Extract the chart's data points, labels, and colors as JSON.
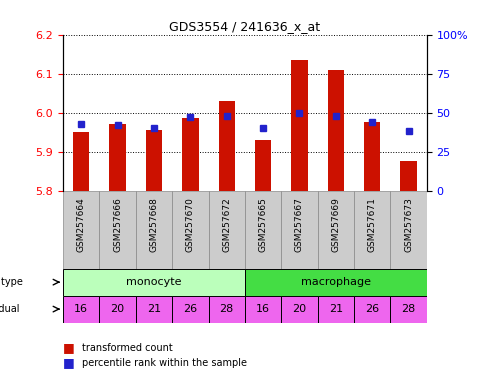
{
  "title": "GDS3554 / 241636_x_at",
  "samples": [
    "GSM257664",
    "GSM257666",
    "GSM257668",
    "GSM257670",
    "GSM257672",
    "GSM257665",
    "GSM257667",
    "GSM257669",
    "GSM257671",
    "GSM257673"
  ],
  "red_values": [
    5.95,
    5.97,
    5.955,
    5.985,
    6.03,
    5.93,
    6.135,
    6.11,
    5.975,
    5.875
  ],
  "blue_values_pct": [
    43,
    42,
    40,
    47,
    48,
    40,
    50,
    48,
    44,
    38
  ],
  "ylim_left": [
    5.8,
    6.2
  ],
  "ylim_right": [
    0,
    100
  ],
  "yticks_left": [
    5.8,
    5.9,
    6.0,
    6.1,
    6.2
  ],
  "yticks_right": [
    0,
    25,
    50,
    75,
    100
  ],
  "individuals": [
    16,
    20,
    21,
    26,
    28,
    16,
    20,
    21,
    26,
    28
  ],
  "monocyte_color": "#bbffbb",
  "macrophage_color": "#44dd44",
  "individual_color": "#ee66ee",
  "sample_bg_color": "#cccccc",
  "bar_color": "#cc1100",
  "blue_color": "#2222cc",
  "bar_width": 0.45,
  "base_value": 5.8
}
